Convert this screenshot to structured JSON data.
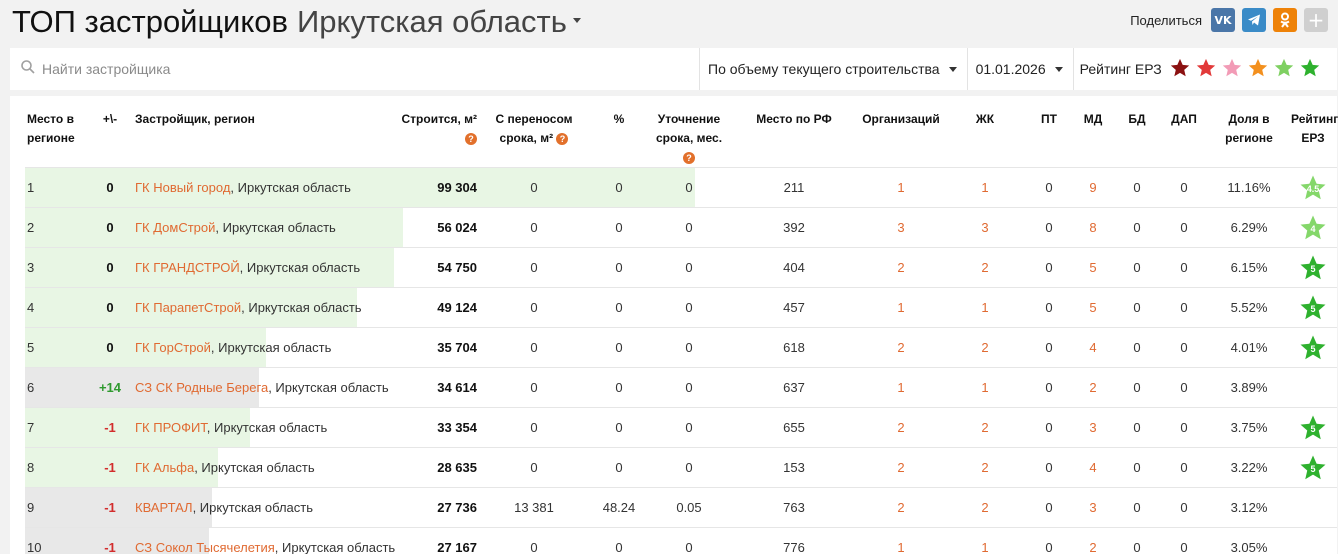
{
  "page": {
    "title": "ТОП застройщиков",
    "region": "Иркутская область"
  },
  "share": {
    "label": "Поделиться",
    "vk": "VK",
    "telegram": "TG",
    "ok": "OK",
    "plus": "+"
  },
  "filters": {
    "search_placeholder": "Найти застройщика",
    "sort": "По объему текущего строительства",
    "date": "01.01.2026",
    "rating_label": "Рейтинг ЕРЗ",
    "star_colors": [
      "#8b1111",
      "#e23a3a",
      "#f29bb6",
      "#f3901e",
      "#7fd062",
      "#2eb12e"
    ]
  },
  "colors": {
    "green_bar": "#e8f6e4",
    "gray_bar": "#e8e8e8",
    "accent": "#e06a32",
    "star_45": "#84d76a",
    "star_4": "#84d76a",
    "star_5": "#2eb12e"
  },
  "table": {
    "headers": {
      "place": "Место в регионе",
      "change": "+\\-",
      "developer": "Застройщик, регион",
      "building": "Строится, м²",
      "shifted": "С переносом срока, м²",
      "percent": "%",
      "clarify": "Уточнение срока, мес.",
      "rf": "Место по РФ",
      "orgs": "Организаций",
      "zhk": "ЖК",
      "pt": "ПТ",
      "md": "МД",
      "bd": "БД",
      "dap": "ДАП",
      "share": "Доля в регионе",
      "rating": "Рейтинг ЕРЗ"
    },
    "rows": [
      {
        "place": "1",
        "change": "0",
        "dir": "zero",
        "dev": "ГК Новый город",
        "region": ", Иркутская область",
        "building": "99 304",
        "shifted": "0",
        "percent": "0",
        "clarify": "0",
        "rf": "211",
        "orgs": "1",
        "zhk": "1",
        "pt": "0",
        "md": "9",
        "bd": "0",
        "dap": "0",
        "share": "11.16%",
        "rating": "4.5",
        "bar": 1.0,
        "bar_color": "green"
      },
      {
        "place": "2",
        "change": "0",
        "dir": "zero",
        "dev": "ГК ДомСтрой",
        "region": ", Иркутская область",
        "building": "56 024",
        "shifted": "0",
        "percent": "0",
        "clarify": "0",
        "rf": "392",
        "orgs": "3",
        "zhk": "3",
        "pt": "0",
        "md": "8",
        "bd": "0",
        "dap": "0",
        "share": "6.29%",
        "rating": "4",
        "bar": 0.564,
        "bar_color": "green"
      },
      {
        "place": "3",
        "change": "0",
        "dir": "zero",
        "dev": "ГК ГРАНДСТРОЙ",
        "region": ", Иркутская область",
        "building": "54 750",
        "shifted": "0",
        "percent": "0",
        "clarify": "0",
        "rf": "404",
        "orgs": "2",
        "zhk": "2",
        "pt": "0",
        "md": "5",
        "bd": "0",
        "dap": "0",
        "share": "6.15%",
        "rating": "5",
        "bar": 0.551,
        "bar_color": "green"
      },
      {
        "place": "4",
        "change": "0",
        "dir": "zero",
        "dev": "ГК ПарапетСтрой",
        "region": ", Иркутская область",
        "building": "49 124",
        "shifted": "0",
        "percent": "0",
        "clarify": "0",
        "rf": "457",
        "orgs": "1",
        "zhk": "1",
        "pt": "0",
        "md": "5",
        "bd": "0",
        "dap": "0",
        "share": "5.52%",
        "rating": "5",
        "bar": 0.495,
        "bar_color": "green"
      },
      {
        "place": "5",
        "change": "0",
        "dir": "zero",
        "dev": "ГК ГорСтрой",
        "region": ", Иркутская область",
        "building": "35 704",
        "shifted": "0",
        "percent": "0",
        "clarify": "0",
        "rf": "618",
        "orgs": "2",
        "zhk": "2",
        "pt": "0",
        "md": "4",
        "bd": "0",
        "dap": "0",
        "share": "4.01%",
        "rating": "5",
        "bar": 0.36,
        "bar_color": "green"
      },
      {
        "place": "6",
        "change": "+14",
        "dir": "pos",
        "dev": "СЗ СК Родные Берега",
        "region": ", Иркутская область",
        "building": "34 614",
        "shifted": "0",
        "percent": "0",
        "clarify": "0",
        "rf": "637",
        "orgs": "1",
        "zhk": "1",
        "pt": "0",
        "md": "2",
        "bd": "0",
        "dap": "0",
        "share": "3.89%",
        "rating": "",
        "bar": 0.349,
        "bar_color": "gray"
      },
      {
        "place": "7",
        "change": "-1",
        "dir": "neg",
        "dev": "ГК ПРОФИТ",
        "region": ", Иркутская область",
        "building": "33 354",
        "shifted": "0",
        "percent": "0",
        "clarify": "0",
        "rf": "655",
        "orgs": "2",
        "zhk": "2",
        "pt": "0",
        "md": "3",
        "bd": "0",
        "dap": "0",
        "share": "3.75%",
        "rating": "5",
        "bar": 0.336,
        "bar_color": "green"
      },
      {
        "place": "8",
        "change": "-1",
        "dir": "neg",
        "dev": "ГК Альфа",
        "region": ", Иркутская область",
        "building": "28 635",
        "shifted": "0",
        "percent": "0",
        "clarify": "0",
        "rf": "153",
        "orgs": "2",
        "zhk": "2",
        "pt": "0",
        "md": "4",
        "bd": "0",
        "dap": "0",
        "share": "3.22%",
        "rating": "5",
        "bar": 0.288,
        "bar_color": "green"
      },
      {
        "place": "9",
        "change": "-1",
        "dir": "neg",
        "dev": "КВАРТАЛ",
        "region": ", Иркутская область",
        "building": "27 736",
        "shifted": "13 381",
        "percent": "48.24",
        "clarify": "0.05",
        "rf": "763",
        "orgs": "2",
        "zhk": "2",
        "pt": "0",
        "md": "3",
        "bd": "0",
        "dap": "0",
        "share": "3.12%",
        "rating": "",
        "bar": 0.279,
        "bar_color": "gray"
      },
      {
        "place": "10",
        "change": "-1",
        "dir": "neg",
        "dev": "СЗ Сокол Тысячелетия",
        "region": ", Иркутская область",
        "building": "27 167",
        "shifted": "0",
        "percent": "0",
        "clarify": "0",
        "rf": "776",
        "orgs": "1",
        "zhk": "1",
        "pt": "0",
        "md": "2",
        "bd": "0",
        "dap": "0",
        "share": "3.05%",
        "rating": "",
        "bar": 0.274,
        "bar_color": "gray"
      }
    ]
  }
}
